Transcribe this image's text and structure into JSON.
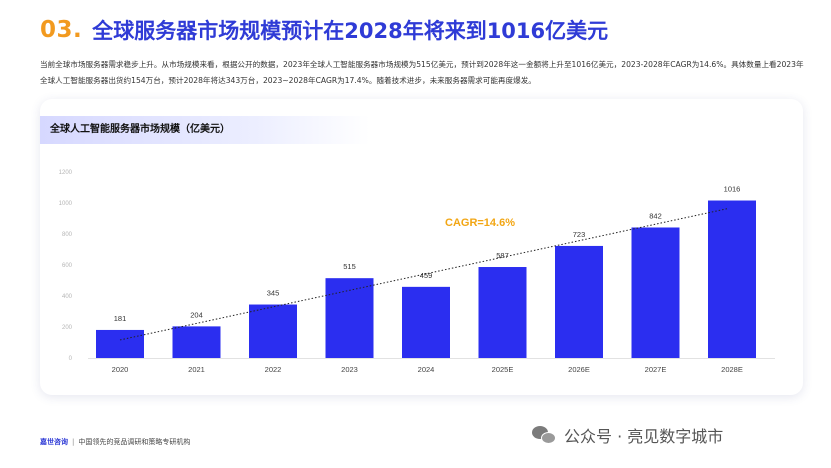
{
  "header": {
    "number": "03.",
    "title": "全球服务器市场规模预计在2028年将来到1016亿美元"
  },
  "intro": "当前全球市场服务器需求稳步上升。从市场规模来看，根据公开的数据，2023年全球人工智能服务器市场规模为515亿美元，预计到2028年这一金额将上升至1016亿美元，2023-2028年CAGR为14.6%。具体数量上看2023年全球人工智能服务器出货约154万台，预计2028年将达343万台，2023~2028年CAGR为17.4%。随着技术进步，未来服务器需求可能再度爆发。",
  "card": {
    "title": "全球人工智能服务器市场规模（亿美元）"
  },
  "chart_data": {
    "type": "bar",
    "title": "全球人工智能服务器市场规模（亿美元）",
    "categories": [
      "2020",
      "2021",
      "2022",
      "2023",
      "2024",
      "2025E",
      "2026E",
      "2027E",
      "2028E"
    ],
    "values": [
      181,
      204,
      345,
      515,
      459,
      587,
      723,
      842,
      1016
    ],
    "ylim": [
      0,
      1200
    ],
    "yticks": [
      0,
      200,
      400,
      600,
      800,
      1000,
      1200
    ],
    "trendline": "dotted",
    "annotation": "CAGR=14.6%",
    "grid": false,
    "legend": "none"
  },
  "footer": {
    "brand": "嘉世咨询",
    "separator": "|",
    "tagline": "中国领先的竞品调研和策略专研机构"
  },
  "source": {
    "text": "公众号 · 亮见数字城市"
  },
  "colors": {
    "bar": "#2b2ef0",
    "title": "#2f3bd6",
    "number": "#f29a1f",
    "annotation": "#f2a614"
  }
}
